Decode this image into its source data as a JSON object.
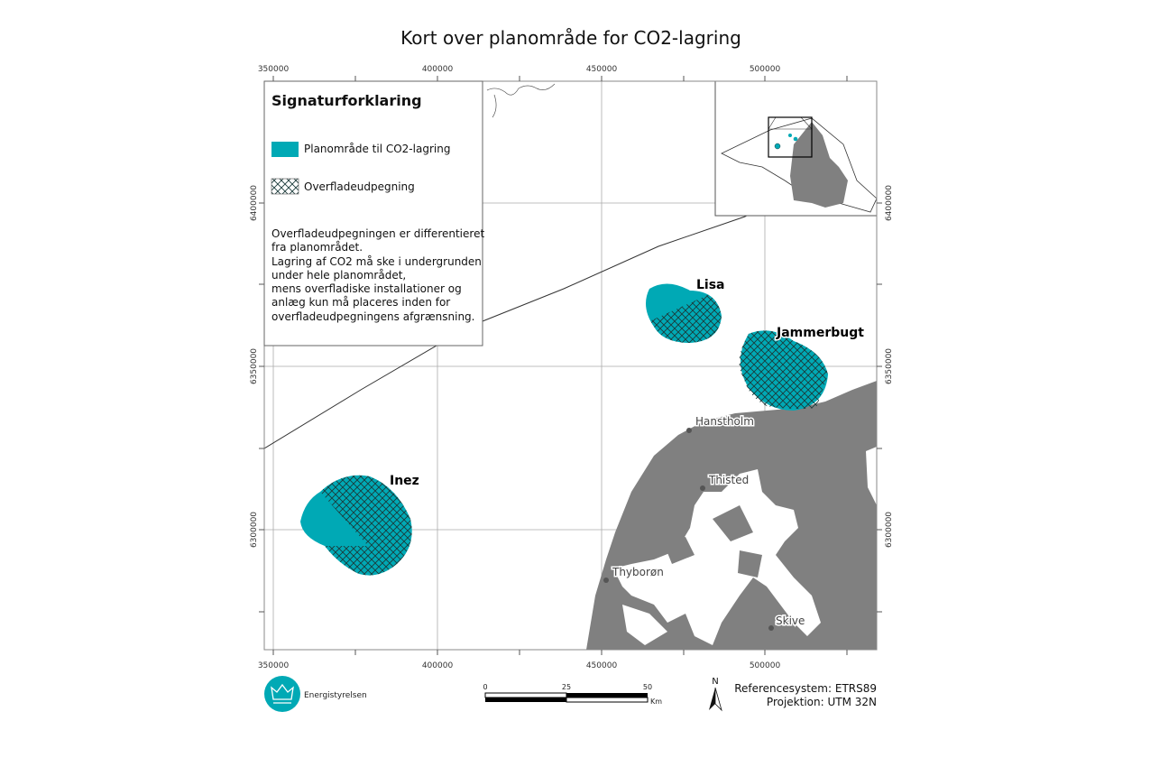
{
  "title": "Kort over planområde for CO2-lagring",
  "axes": {
    "x_ticks": [
      "350000",
      "400000",
      "450000",
      "500000"
    ],
    "y_ticks": [
      "6400000",
      "6350000",
      "6300000"
    ]
  },
  "legend": {
    "heading": "Signaturforklaring",
    "items": [
      {
        "label": "Planområde til CO2-lagring",
        "symbol": "teal-fill"
      },
      {
        "label": "Overfladeudpegning",
        "symbol": "crosshatch"
      }
    ],
    "note_lines": [
      "Overfladeudpegningen er differentieret",
      "fra planområdet.",
      "Lagring af CO2 må ske i undergrunden",
      "under hele planområdet,",
      "mens overfladiske installationer og",
      "anlæg kun må placeres inden for",
      "overfladeudpegningens afgrænsning."
    ]
  },
  "areas": [
    "Lisa",
    "Jammerbugt",
    "Inez"
  ],
  "places": [
    "Hanstholm",
    "Thisted",
    "Thyborøn",
    "Skive"
  ],
  "scalebar": {
    "labels": [
      "0",
      "25",
      "50"
    ],
    "unit": "Km"
  },
  "north_label": "N",
  "logo_text": "Energistyrelsen",
  "reference": {
    "line1": "Referencesystem: ETRS89",
    "line2": "Projektion: UTM 32N"
  },
  "colors": {
    "planomraade": "#00a9b5",
    "land": "#808080",
    "hatch": "#1a3a3a"
  }
}
